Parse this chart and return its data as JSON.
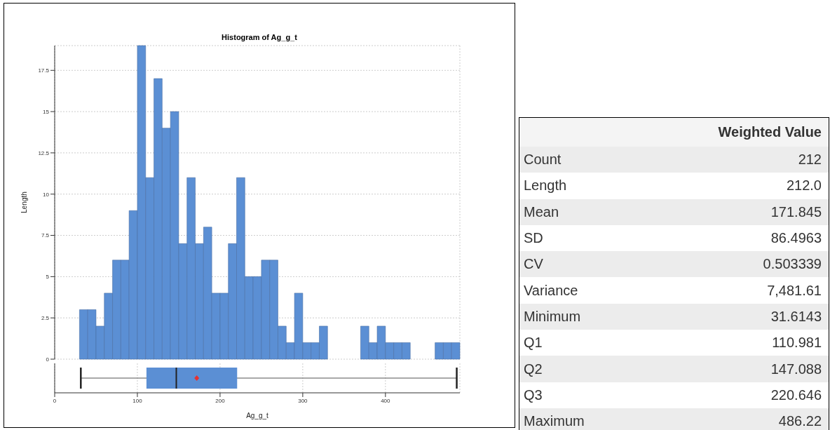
{
  "chart_data": [
    {
      "type": "histogram",
      "title": "Histogram of Ag_g_t",
      "ylabel": "Length",
      "color": "#5b8fd4",
      "bins": [
        30,
        40,
        50,
        60,
        70,
        80,
        90,
        100,
        110,
        120,
        130,
        140,
        150,
        160,
        170,
        180,
        190,
        200,
        210,
        220,
        230,
        240,
        250,
        260,
        270,
        280,
        290,
        300,
        310,
        320,
        330,
        340,
        350,
        360,
        370,
        380,
        390,
        400,
        410,
        420,
        430,
        440,
        450,
        460,
        470,
        480,
        490
      ],
      "values": [
        3,
        3,
        2,
        4,
        6,
        6,
        9,
        19,
        11,
        17,
        14,
        15,
        7,
        11,
        7,
        8,
        4,
        4,
        7,
        11,
        5,
        5,
        6,
        6,
        2,
        1,
        4,
        1,
        1,
        2,
        0,
        0,
        0,
        0,
        2,
        1,
        2,
        1,
        1,
        1,
        0,
        0,
        0,
        1,
        1,
        1
      ],
      "xlim": [
        0,
        490
      ],
      "xticks": [
        0,
        100,
        200,
        300,
        400
      ],
      "ylim": [
        0,
        19
      ],
      "yticks": [
        0,
        2.5,
        5,
        7.5,
        10,
        12.5,
        15,
        17.5
      ],
      "grid": true,
      "tick_labels": "y"
    },
    {
      "type": "box",
      "orientation": "horizontal",
      "xlabel": "Ag_g_t",
      "categories": [
        null
      ],
      "color": "#5b8fd4",
      "boxes": [
        {
          "low": 31.6143,
          "q1": 110.981,
          "median": 147.088,
          "q3": 220.646,
          "high": 486.22,
          "mean": 171.845
        }
      ],
      "xlim": [
        0,
        490
      ],
      "xticks": [
        0,
        100,
        200,
        300,
        400
      ],
      "grid": "x"
    },
    {
      "type": "other",
      "title": "Weighted Value",
      "categories": [
        "Count",
        "Length",
        "Mean",
        "SD",
        "CV",
        "Variance",
        "Minimum",
        "Q1",
        "Q2",
        "Q3",
        "Maximum"
      ],
      "value_labels": [
        "212",
        "212.0",
        "171.845",
        "86.4963",
        "0.503339",
        "7,481.61",
        "31.6143",
        "110.981",
        "147.088",
        "220.646",
        "486.22"
      ]
    }
  ]
}
